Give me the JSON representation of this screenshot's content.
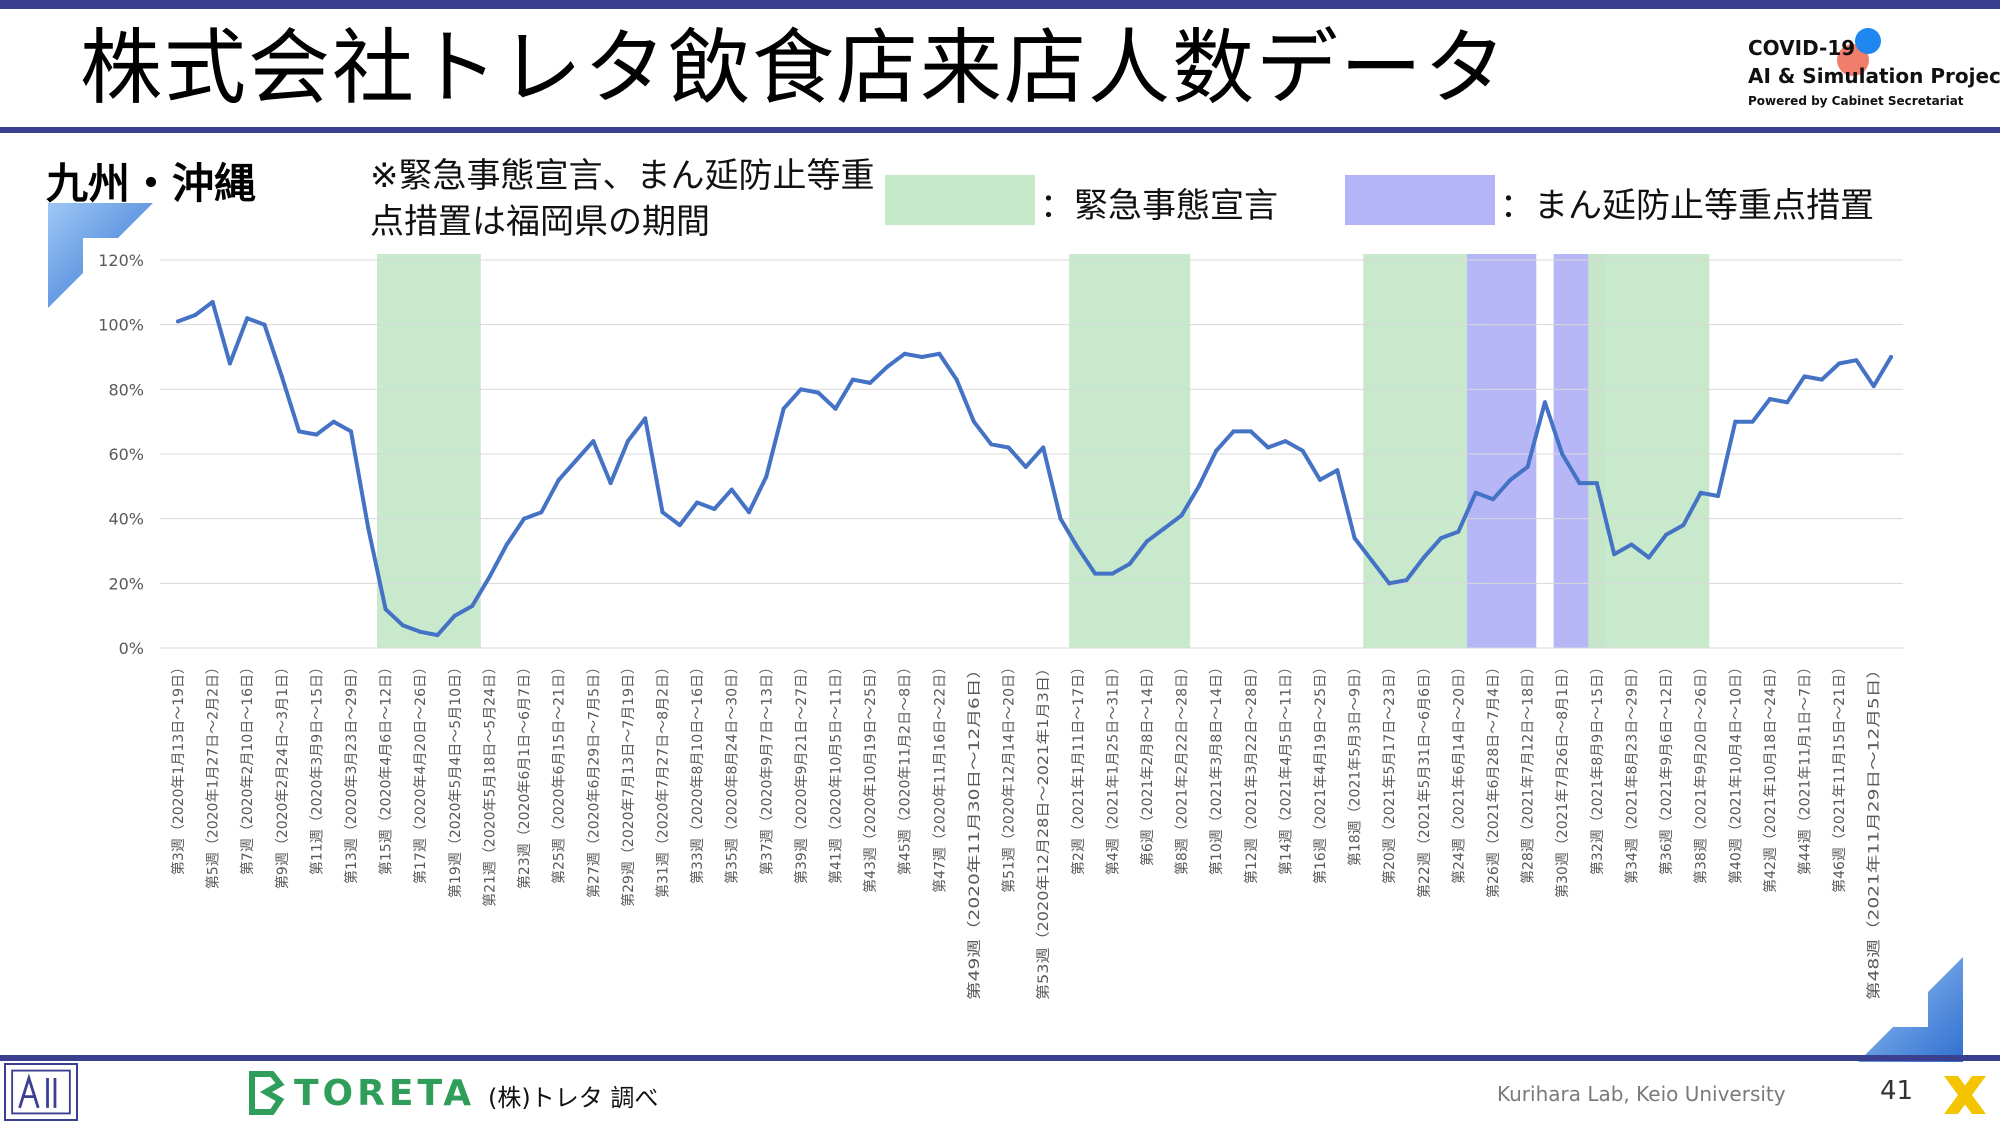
{
  "header": {
    "title": "株式会社トレタ飲食店来店人数データ",
    "logo_line1": "COVID-19",
    "logo_line2": "AI & Simulation Project",
    "logo_line3": "Powered by Cabinet Secretariat"
  },
  "region": "九州・沖縄",
  "note": "※緊急事態宣言、まん延防止等重点措置は福岡県の期間",
  "legend": [
    {
      "label": "：緊急事態宣言",
      "color": "#c5e8c8"
    },
    {
      "label": "：まん延防止等重点措置",
      "color": "#b3b3f7"
    }
  ],
  "footer": {
    "brand": "TORETA",
    "source": "(株)トレタ 調べ",
    "lab": "Kurihara Lab, Keio University",
    "page": "41"
  },
  "colors": {
    "accent": "#3b3f8f",
    "line": "#4472c4",
    "emergency": "#c5e8c8",
    "priority": "#b3b3f7"
  },
  "chart_data": {
    "type": "line",
    "ylim": [
      0,
      120
    ],
    "y_ticks": [
      0,
      20,
      40,
      60,
      80,
      100,
      120
    ],
    "y_tick_labels": [
      "0%",
      "20%",
      "40%",
      "60%",
      "80%",
      "100%",
      "120%"
    ],
    "grid": true,
    "x_tick_labels": [
      "第3週（2020年1月13日～19日）",
      "第5週（2020年1月27日～2月2日）",
      "第7週（2020年2月10日～16日）",
      "第9週（2020年2月24日～3月1日）",
      "第11週（2020年3月9日～15日）",
      "第13週（2020年3月23日～29日）",
      "第15週（2020年4月6日～12日）",
      "第17週（2020年4月20日～26日）",
      "第19週（2020年5月4日～5月10日）",
      "第21週（2020年5月18日～5月24日）",
      "第23週（2020年6月1日～6月7日）",
      "第25週（2020年6月15日～21日）",
      "第27週（2020年6月29日～7月5日）",
      "第29週（2020年7月13日～7月19日）",
      "第31週（2020年7月27日～8月2日）",
      "第33週（2020年8月10日～16日）",
      "第35週（2020年8月24日～30日）",
      "第37週（2020年9月7日～13日）",
      "第39週（2020年9月21日～27日）",
      "第41週（2020年10月5日～11日）",
      "第43週（2020年10月19日～25日）",
      "第45週（2020年11月2日～8日）",
      "第47週（2020年11月16日～22日）",
      "第49週（2020年11月30日～12月6日）",
      "第51週（2020年12月14日～20日）",
      "第53週（2020年12月28日～2021年1月3日）",
      "第2週（2021年1月11日～17日）",
      "第4週（2021年1月25日～31日）",
      "第6週（2021年2月8日～14日）",
      "第8週（2021年2月22日～28日）",
      "第10週（2021年3月8日～14日）",
      "第12週（2021年3月22日～28日）",
      "第14週（2021年4月5日～11日）",
      "第16週（2021年4月19日～25日）",
      "第18週（2021年5月3日～9日）",
      "第20週（2021年5月17日～23日）",
      "第22週（2021年5月31日～6月6日）",
      "第24週（2021年6月14日～20日）",
      "第26週（2021年6月28日～7月4日）",
      "第28週（2021年7月12日～18日）",
      "第30週（2021年7月26日～8月1日）",
      "第32週（2021年8月9日～15日）",
      "第34週（2021年8月23日～29日）",
      "第36週（2021年9月6日～12日）",
      "第38週（2021年9月20日～26日）",
      "第40週（2021年10月4日～10日）",
      "第42週（2021年10月18日～24日）",
      "第44週（2021年11月1日～7日）",
      "第46週（2021年11月15日～21日）",
      "第48週（2021年11月29日～12月5日）"
    ],
    "values": [
      101,
      103,
      107,
      88,
      102,
      100,
      84,
      67,
      66,
      70,
      67,
      37,
      12,
      7,
      5,
      4,
      10,
      13,
      22,
      32,
      40,
      42,
      52,
      58,
      64,
      51,
      64,
      71,
      42,
      38,
      45,
      43,
      49,
      42,
      53,
      74,
      80,
      79,
      74,
      83,
      82,
      87,
      91,
      90,
      91,
      83,
      70,
      63,
      62,
      56,
      62,
      40,
      31,
      23,
      23,
      26,
      33,
      37,
      41,
      50,
      61,
      67,
      67,
      62,
      64,
      61,
      52,
      55,
      34,
      27,
      20,
      21,
      28,
      34,
      36,
      48,
      46,
      52,
      56,
      76,
      60,
      51,
      51,
      29,
      32,
      28,
      35,
      38,
      48,
      47,
      70,
      70,
      77,
      76,
      84,
      83,
      88,
      89,
      81,
      90
    ],
    "bands": [
      {
        "type": "emergency",
        "start_index": 12,
        "end_index": 17
      },
      {
        "type": "emergency",
        "start_index": 52,
        "end_index": 58
      },
      {
        "type": "emergency",
        "start_index": 69,
        "end_index": 75
      },
      {
        "type": "priority",
        "start_index": 75,
        "end_index": 78
      },
      {
        "type": "priority",
        "start_index": 80,
        "end_index": 82
      },
      {
        "type": "emergency",
        "start_index": 82,
        "end_index": 88
      }
    ]
  }
}
